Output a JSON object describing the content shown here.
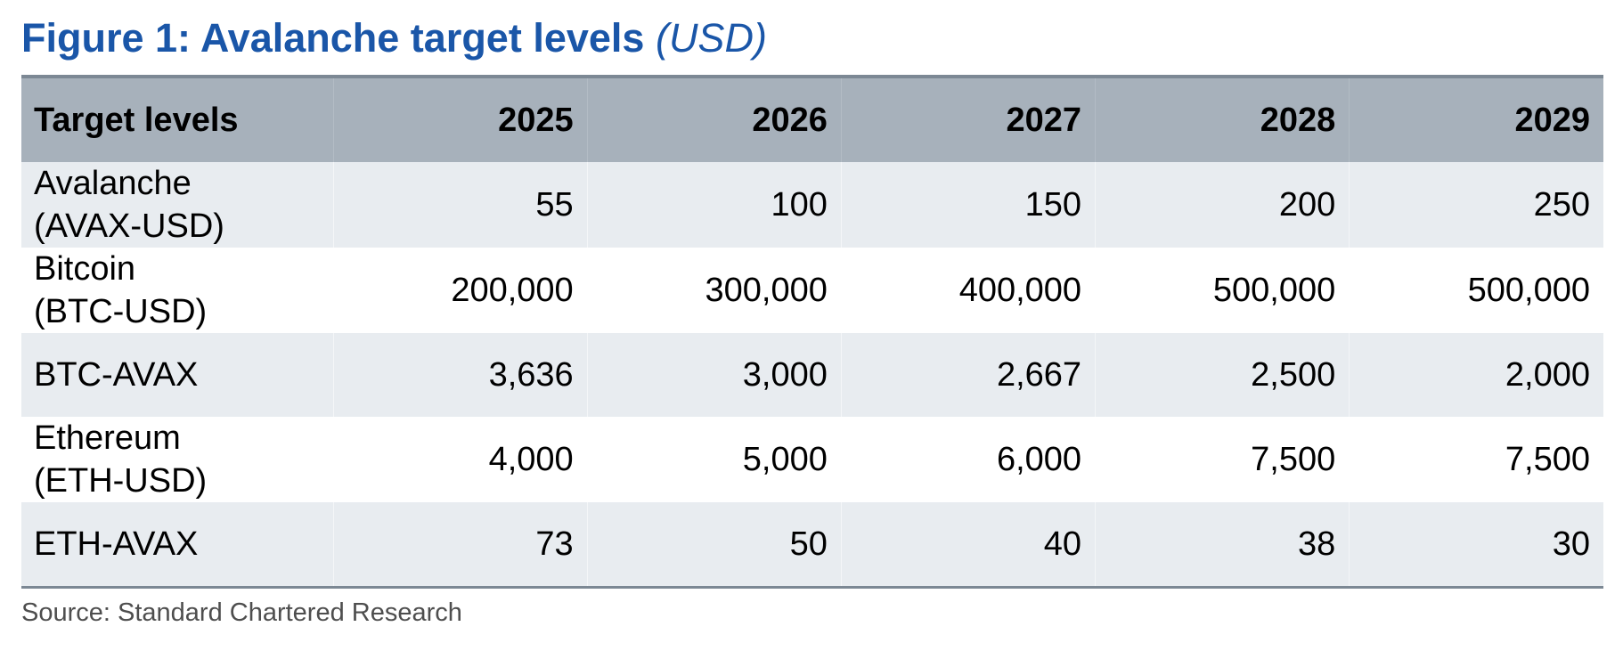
{
  "figure": {
    "title": "Figure 1: Avalanche target levels",
    "unit": "(USD)"
  },
  "chart_data": {
    "type": "table",
    "columns": [
      "Target levels",
      "2025",
      "2026",
      "2027",
      "2028",
      "2029"
    ],
    "rows": [
      {
        "label_line1": "Avalanche",
        "label_line2": "(AVAX-USD)",
        "values": [
          "55",
          "100",
          "150",
          "200",
          "250"
        ]
      },
      {
        "label_line1": "Bitcoin",
        "label_line2": "(BTC-USD)",
        "values": [
          "200,000",
          "300,000",
          "400,000",
          "500,000",
          "500,000"
        ]
      },
      {
        "label_line1": "BTC-AVAX",
        "label_line2": "",
        "values": [
          "3,636",
          "3,000",
          "2,667",
          "2,500",
          "2,000"
        ]
      },
      {
        "label_line1": "Ethereum",
        "label_line2": "(ETH-USD)",
        "values": [
          "4,000",
          "5,000",
          "6,000",
          "7,500",
          "7,500"
        ]
      },
      {
        "label_line1": "ETH-AVAX",
        "label_line2": "",
        "values": [
          "73",
          "50",
          "40",
          "38",
          "30"
        ]
      }
    ]
  },
  "source": "Source: Standard Chartered Research",
  "colors": {
    "title": "#1a56a8",
    "header_bg": "#a7b1bb",
    "alt_row_bg": "#e8ecf0",
    "rule": "#7c8894",
    "source_text": "#4e4e4e"
  }
}
